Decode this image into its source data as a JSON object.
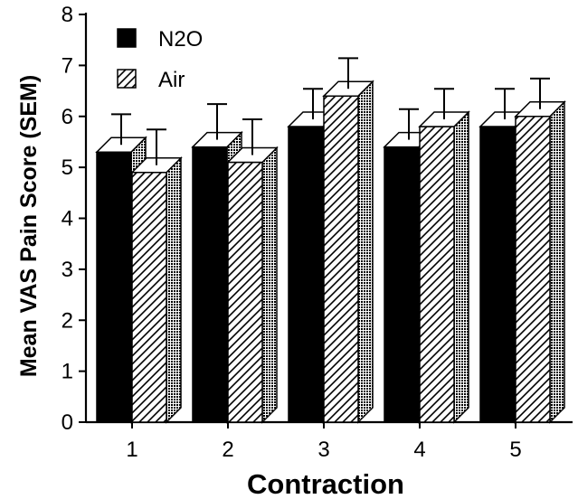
{
  "chart_data": {
    "type": "bar",
    "style": "3d",
    "title": "",
    "xlabel": "Contraction",
    "ylabel": "Mean VAS Pain Score (SEM)",
    "categories": [
      "1",
      "2",
      "3",
      "4",
      "5"
    ],
    "ylim": [
      0,
      8
    ],
    "yticks": [
      "0",
      "1",
      "2",
      "3",
      "4",
      "5",
      "6",
      "7",
      "8"
    ],
    "grid": false,
    "legend_position": "top-left",
    "series": [
      {
        "name": "N2O",
        "pattern": "solid",
        "color": "#000000",
        "values": [
          5.3,
          5.4,
          5.8,
          5.4,
          5.8
        ],
        "errors": [
          0.6,
          0.7,
          0.6,
          0.6,
          0.6
        ]
      },
      {
        "name": "Air",
        "pattern": "diagonal-hatch",
        "color": "#000000",
        "values": [
          4.9,
          5.1,
          6.4,
          5.8,
          6.0
        ],
        "errors": [
          0.7,
          0.7,
          0.6,
          0.6,
          0.6
        ]
      }
    ]
  }
}
